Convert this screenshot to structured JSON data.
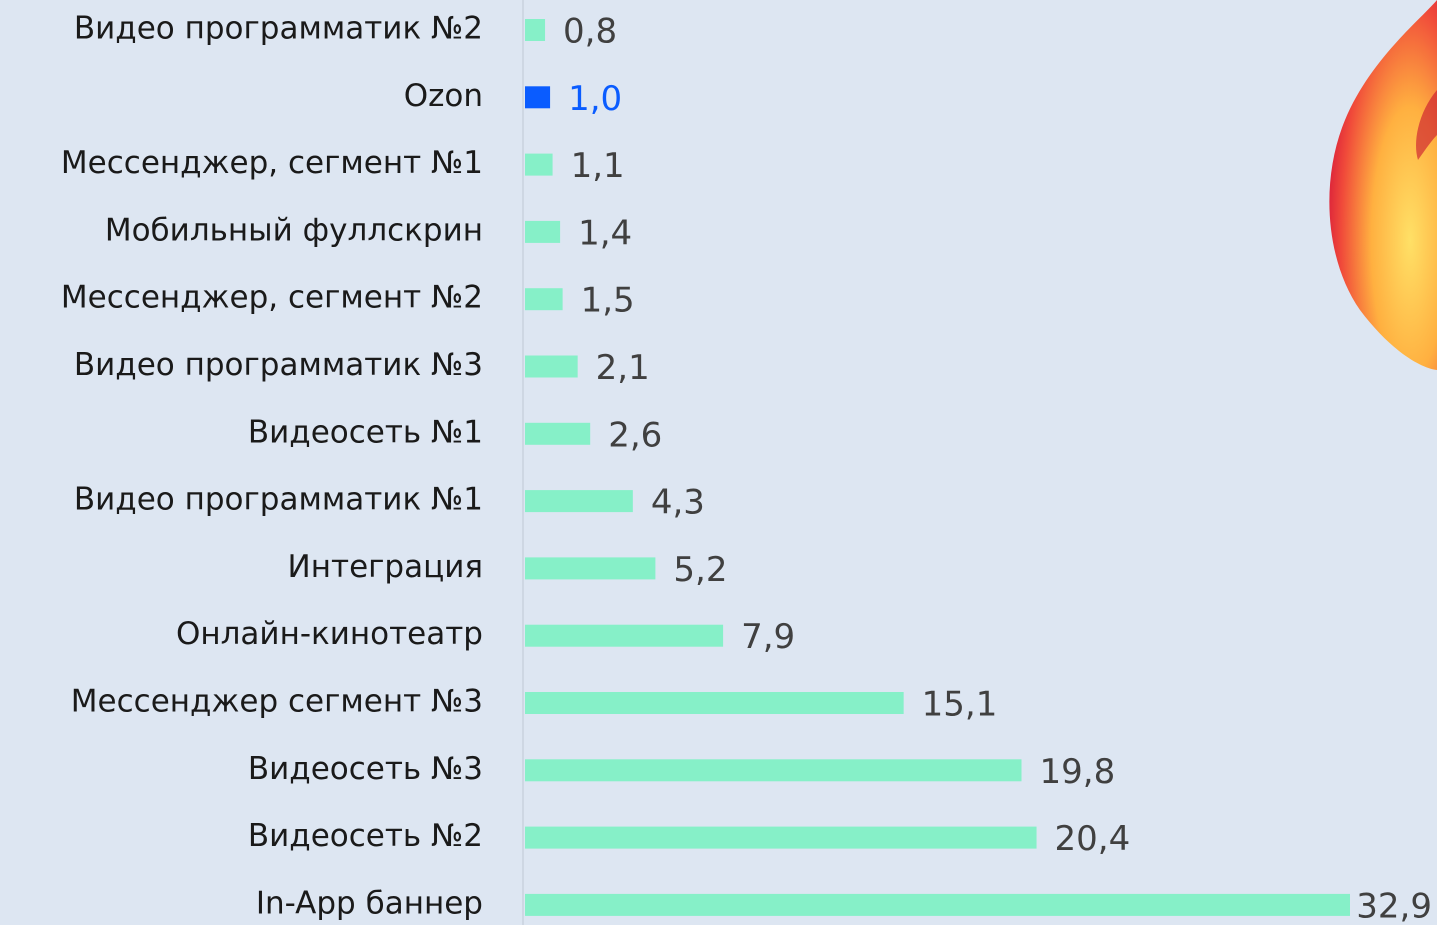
{
  "chart_data": {
    "type": "bar",
    "orientation": "horizontal",
    "categories": [
      "Видео программатик №2",
      "Ozon",
      "Мессенджер, сегмент №1",
      "Мобильный фуллскрин",
      "Мессенджер, сегмент №2",
      "Видео программатик №3",
      "Видеосеть №1",
      "Видео программатик №1",
      "Интеграция",
      "Онлайн-кинотеатр",
      "Мессенджер сегмент №3",
      "Видеосеть №3",
      "Видеосеть №2",
      "In-App баннер"
    ],
    "values": [
      0.8,
      1.0,
      1.1,
      1.4,
      1.5,
      2.1,
      2.6,
      4.3,
      5.2,
      7.9,
      15.1,
      19.8,
      20.4,
      32.9
    ],
    "value_labels": [
      "0,8",
      "1,0",
      "1,1",
      "1,4",
      "1,5",
      "2,1",
      "2,6",
      "4,3",
      "5,2",
      "7,9",
      "15,1",
      "19,8",
      "20,4",
      "32,9"
    ],
    "color": "#86f0c8",
    "colors": [
      "#86f0c8",
      "#0a5cff",
      "#86f0c8",
      "#86f0c8",
      "#86f0c8",
      "#86f0c8",
      "#86f0c8",
      "#86f0c8",
      "#86f0c8",
      "#86f0c8",
      "#86f0c8",
      "#86f0c8",
      "#86f0c8",
      "#86f0c8"
    ]
  }
}
